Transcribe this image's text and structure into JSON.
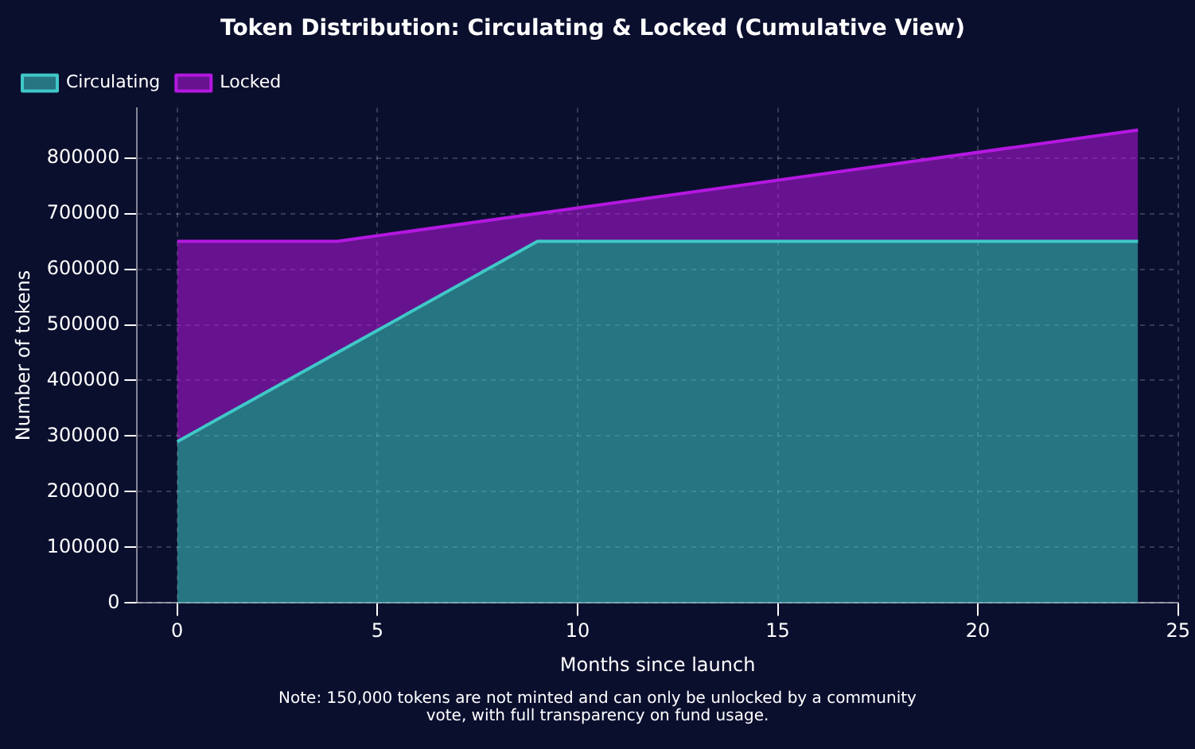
{
  "chart_data": {
    "type": "area",
    "title": "Token Distribution: Circulating & Locked (Cumulative View)",
    "xlabel": "Months since launch",
    "ylabel": "Number of tokens",
    "x": [
      0,
      4,
      9,
      24
    ],
    "stacked": true,
    "series": [
      {
        "name": "Circulating",
        "color": "#40c8c8",
        "values": [
          290000,
          450000,
          650000,
          650000
        ]
      },
      {
        "name": "Locked",
        "color": "#b418e0",
        "values": [
          360000,
          200000,
          50000,
          200000
        ]
      }
    ],
    "xlim": [
      -1,
      25
    ],
    "xticks": [
      0,
      5,
      10,
      15,
      20,
      25
    ],
    "ylim": [
      0,
      890000
    ],
    "yticks": [
      0,
      100000,
      200000,
      300000,
      400000,
      500000,
      600000,
      700000,
      800000
    ],
    "grid": true,
    "legend": "top left",
    "annotations": [
      "Note: 150,000 tokens are not minted and can only be unlocked by a community vote, with full transparency on fund usage."
    ]
  }
}
